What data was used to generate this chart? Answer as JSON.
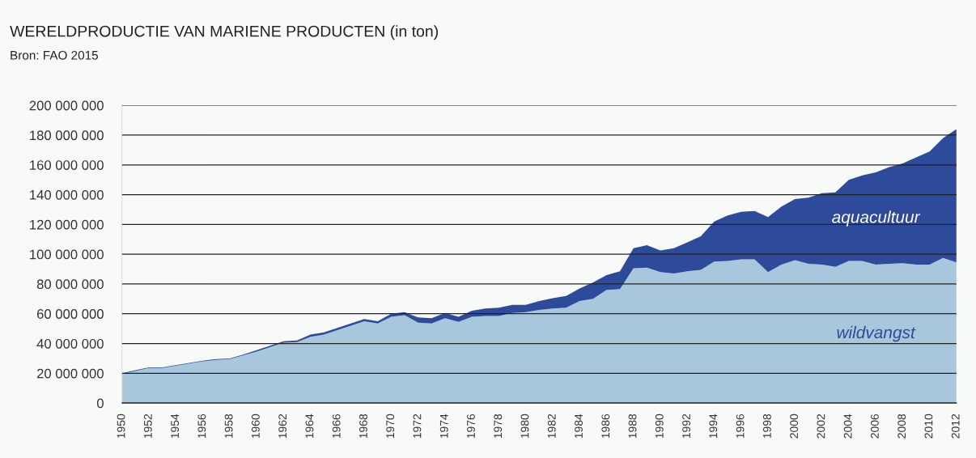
{
  "chart_data": {
    "type": "area",
    "stacked": true,
    "title": "WERELDPRODUCTIE VAN MARIENE PRODUCTEN (in ton)",
    "subtitle": "Bron: FAO 2015",
    "x": [
      1950,
      1951,
      1952,
      1953,
      1954,
      1955,
      1956,
      1957,
      1958,
      1959,
      1960,
      1961,
      1962,
      1963,
      1964,
      1965,
      1966,
      1967,
      1968,
      1969,
      1970,
      1971,
      1972,
      1973,
      1974,
      1975,
      1976,
      1977,
      1978,
      1979,
      1980,
      1981,
      1982,
      1983,
      1984,
      1985,
      1986,
      1987,
      1988,
      1989,
      1990,
      1991,
      1992,
      1993,
      1994,
      1995,
      1996,
      1997,
      1998,
      1999,
      2000,
      2001,
      2002,
      2003,
      2004,
      2005,
      2006,
      2007,
      2008,
      2009,
      2010,
      2011,
      2012
    ],
    "series": [
      {
        "name": "wildvangst",
        "color": "#a8c6dc",
        "values": [
          19500000,
          21500000,
          23500000,
          23500000,
          25000000,
          26500000,
          28000000,
          29000000,
          29500000,
          32000000,
          34500000,
          37500000,
          40500000,
          41000000,
          44500000,
          46000000,
          49000000,
          52000000,
          55000000,
          53500000,
          58000000,
          59000000,
          54000000,
          53500000,
          57000000,
          54500000,
          58000000,
          58500000,
          58500000,
          60500000,
          61000000,
          62500000,
          63500000,
          64000000,
          68500000,
          70000000,
          76000000,
          76500000,
          90500000,
          91000000,
          88000000,
          87000000,
          88500000,
          89500000,
          95000000,
          95500000,
          96500000,
          96500000,
          88000000,
          93000000,
          96000000,
          93500000,
          93000000,
          91500000,
          95500000,
          95500000,
          93000000,
          93500000,
          94000000,
          93000000,
          93000000,
          97500000,
          94500000
        ]
      },
      {
        "name": "aquacultuur",
        "color": "#2e4a9a",
        "values": [
          500000,
          500000,
          500000,
          500000,
          500000,
          500000,
          500000,
          500000,
          500000,
          500000,
          1000000,
          1000000,
          1000000,
          1000000,
          1500000,
          1500000,
          1500000,
          1500000,
          1500000,
          1500000,
          2000000,
          2000000,
          3500000,
          3500000,
          3500000,
          3500000,
          4000000,
          5000000,
          5500000,
          5500000,
          5000000,
          6000000,
          7000000,
          8000000,
          8500000,
          11000000,
          10000000,
          12000000,
          13500000,
          15000000,
          14500000,
          17000000,
          19500000,
          22500000,
          27000000,
          30500000,
          32000000,
          32500000,
          37000000,
          39000000,
          41000000,
          44500000,
          48000000,
          50000000,
          54500000,
          57500000,
          62000000,
          65000000,
          67000000,
          72000000,
          76000000,
          80500000,
          89500000
        ]
      }
    ],
    "xlim": [
      1950,
      2012
    ],
    "xticks": [
      1950,
      1952,
      1954,
      1956,
      1958,
      1960,
      1962,
      1964,
      1966,
      1968,
      1970,
      1972,
      1974,
      1976,
      1978,
      1980,
      1982,
      1984,
      1986,
      1988,
      1990,
      1992,
      1994,
      1996,
      1998,
      2000,
      2002,
      2004,
      2006,
      2008,
      2010,
      2012
    ],
    "ylim": [
      0,
      200000000
    ],
    "yticks": [
      {
        "value": 0,
        "label": "0"
      },
      {
        "value": 20000000,
        "label": "20 000 000"
      },
      {
        "value": 40000000,
        "label": "40 000 000"
      },
      {
        "value": 60000000,
        "label": "60 000 000"
      },
      {
        "value": 80000000,
        "label": "80 000 000"
      },
      {
        "value": 100000000,
        "label": "100 000 000"
      },
      {
        "value": 120000000,
        "label": "120 000 000"
      },
      {
        "value": 140000000,
        "label": "140 000 000"
      },
      {
        "value": 160000000,
        "label": "160 000 000"
      },
      {
        "value": 180000000,
        "label": "180 000 000"
      },
      {
        "value": 200000000,
        "label": "200 000 000"
      }
    ],
    "grid": "y",
    "legend": false
  }
}
